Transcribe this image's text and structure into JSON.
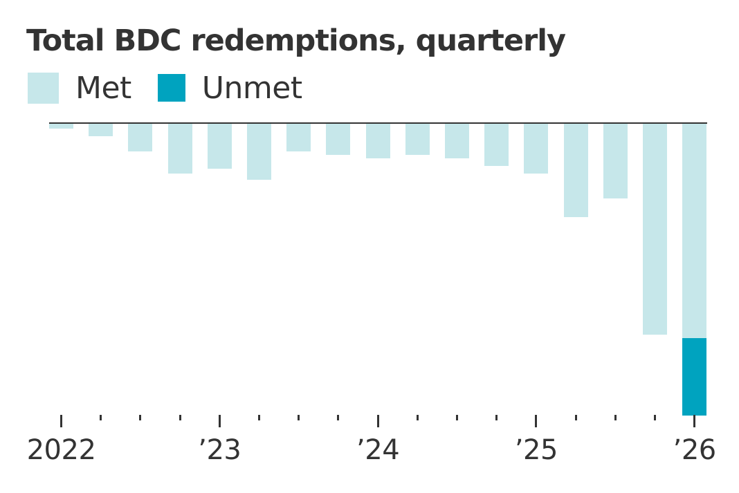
{
  "header": {
    "title": "Total BDC redemptions, quarterly"
  },
  "legend": [
    {
      "label": "Met",
      "color": "#c6e7ea"
    },
    {
      "label": "Unmet",
      "color": "#00a3bf"
    }
  ],
  "x_axis": {
    "major_labels": [
      "2022",
      "’23",
      "’24",
      "’25",
      "’26"
    ]
  },
  "chart_data": {
    "type": "bar",
    "stacked": true,
    "orientation": "downward",
    "title": "Total BDC redemptions, quarterly",
    "xlabel": "",
    "ylabel": "",
    "y_units": "relative (no y-axis scale shown; values in pixel units)",
    "grid": false,
    "legend_position": "top-left",
    "categories": [
      "2022 Q1",
      "2022 Q2",
      "2022 Q3",
      "2022 Q4",
      "2023 Q1",
      "2023 Q2",
      "2023 Q3",
      "2023 Q4",
      "2024 Q1",
      "2024 Q2",
      "2024 Q3",
      "2024 Q4",
      "2025 Q1",
      "2025 Q2",
      "2025 Q3",
      "2025 Q4",
      "2026 Q1"
    ],
    "tick_labels": {
      "0": "2022",
      "4": "’23",
      "8": "’24",
      "12": "’25",
      "16": "’26"
    },
    "series": [
      {
        "name": "Met",
        "color": "#c6e7ea",
        "values": [
          7,
          18,
          40,
          72,
          65,
          81,
          40,
          45,
          50,
          45,
          50,
          61,
          72,
          135,
          108,
          305,
          310
        ]
      },
      {
        "name": "Unmet",
        "color": "#00a3bf",
        "values": [
          0,
          0,
          0,
          0,
          0,
          0,
          0,
          0,
          0,
          0,
          0,
          0,
          0,
          0,
          0,
          0,
          112
        ]
      }
    ]
  }
}
